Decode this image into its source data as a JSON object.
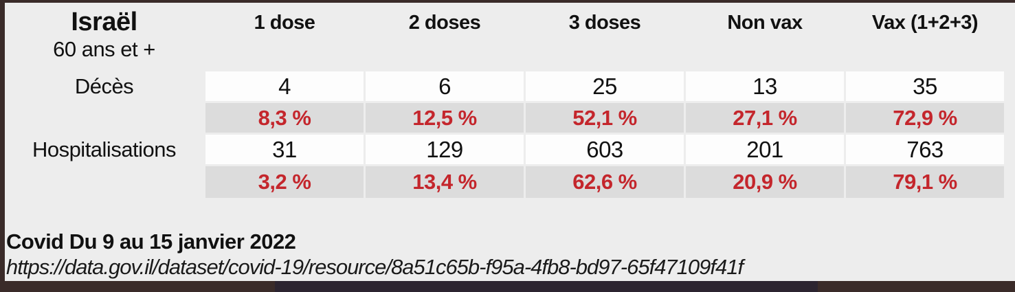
{
  "chart_data": {
    "type": "table",
    "title": "Israël",
    "subtitle": "60 ans et +",
    "columns": [
      "1 dose",
      "2 doses",
      "3 doses",
      "Non vax",
      "Vax (1+2+3)"
    ],
    "rows": [
      {
        "label": "Décès",
        "counts": [
          "4",
          "6",
          "25",
          "13",
          "35"
        ],
        "percents": [
          "8,3 %",
          "12,5 %",
          "52,1 %",
          "27,1 %",
          "72,9 %"
        ]
      },
      {
        "label": "Hospitalisations",
        "counts": [
          "31",
          "129",
          "603",
          "201",
          "763"
        ],
        "percents": [
          "3,2 %",
          "13,4 %",
          "62,6 %",
          "20,9 %",
          "79,1 %"
        ]
      }
    ]
  },
  "footer": {
    "title": "Covid Du 9 au 15 janvier 2022",
    "source_url": "https://data.gov.il/dataset/covid-19/resource/8a51c65b-f95a-4fb8-bd97-65f47109f41f"
  },
  "colors": {
    "background": "#ededed",
    "frame": "#3a2b29",
    "count_cell_bg": "#fdfdfd",
    "percent_cell_bg": "#dcdcdc",
    "percent_text": "#c4262c"
  }
}
